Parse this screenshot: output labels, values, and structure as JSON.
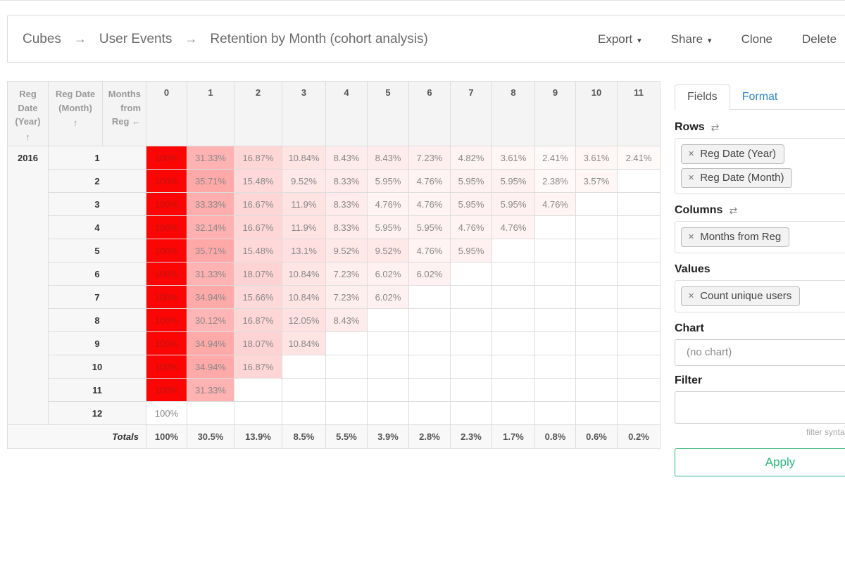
{
  "breadcrumb": {
    "separator": "→",
    "items": [
      {
        "label": "Cubes",
        "link": true
      },
      {
        "label": "User Events",
        "link": true
      },
      {
        "label": "Retention by Month (cohort analysis)",
        "link": false
      }
    ]
  },
  "actions": [
    {
      "label": "Export",
      "caret": true
    },
    {
      "label": "Share",
      "caret": true
    },
    {
      "label": "Clone",
      "caret": false
    },
    {
      "label": "Delete",
      "caret": false
    }
  ],
  "pivot": {
    "row_headers": [
      {
        "label": "Reg Date (Year)",
        "sort": "↑"
      },
      {
        "label": "Reg Date (Month)",
        "sort": "↑"
      },
      {
        "label": "Months from Reg",
        "sort": "←"
      }
    ],
    "col_headers": [
      "0",
      "1",
      "2",
      "3",
      "4",
      "5",
      "6",
      "7",
      "8",
      "9",
      "10",
      "11"
    ],
    "year": "2016",
    "rows": [
      {
        "month": "1",
        "cells": [
          "100%",
          "31.33%",
          "16.87%",
          "10.84%",
          "8.43%",
          "8.43%",
          "7.23%",
          "4.82%",
          "3.61%",
          "2.41%",
          "3.61%",
          "2.41%"
        ]
      },
      {
        "month": "2",
        "cells": [
          "100%",
          "35.71%",
          "15.48%",
          "9.52%",
          "8.33%",
          "5.95%",
          "4.76%",
          "5.95%",
          "5.95%",
          "2.38%",
          "3.57%",
          ""
        ]
      },
      {
        "month": "3",
        "cells": [
          "100%",
          "33.33%",
          "16.67%",
          "11.9%",
          "8.33%",
          "4.76%",
          "4.76%",
          "5.95%",
          "5.95%",
          "4.76%",
          "",
          ""
        ]
      },
      {
        "month": "4",
        "cells": [
          "100%",
          "32.14%",
          "16.67%",
          "11.9%",
          "8.33%",
          "5.95%",
          "5.95%",
          "4.76%",
          "4.76%",
          "",
          "",
          ""
        ]
      },
      {
        "month": "5",
        "cells": [
          "100%",
          "35.71%",
          "15.48%",
          "13.1%",
          "9.52%",
          "9.52%",
          "4.76%",
          "5.95%",
          "",
          "",
          "",
          ""
        ]
      },
      {
        "month": "6",
        "cells": [
          "100%",
          "31.33%",
          "18.07%",
          "10.84%",
          "7.23%",
          "6.02%",
          "6.02%",
          "",
          "",
          "",
          "",
          ""
        ]
      },
      {
        "month": "7",
        "cells": [
          "100%",
          "34.94%",
          "15.66%",
          "10.84%",
          "7.23%",
          "6.02%",
          "",
          "",
          "",
          "",
          "",
          ""
        ]
      },
      {
        "month": "8",
        "cells": [
          "100%",
          "30.12%",
          "16.87%",
          "12.05%",
          "8.43%",
          "",
          "",
          "",
          "",
          "",
          "",
          ""
        ]
      },
      {
        "month": "9",
        "cells": [
          "100%",
          "34.94%",
          "18.07%",
          "10.84%",
          "",
          "",
          "",
          "",
          "",
          "",
          "",
          ""
        ]
      },
      {
        "month": "10",
        "cells": [
          "100%",
          "34.94%",
          "16.87%",
          "",
          "",
          "",
          "",
          "",
          "",
          "",
          "",
          ""
        ]
      },
      {
        "month": "11",
        "cells": [
          "100%",
          "31.33%",
          "",
          "",
          "",
          "",
          "",
          "",
          "",
          "",
          "",
          ""
        ]
      },
      {
        "month": "12",
        "cells": [
          "100%",
          "",
          "",
          "",
          "",
          "",
          "",
          "",
          "",
          "",
          "",
          ""
        ]
      }
    ],
    "no_heat_cells": [
      [
        11,
        0
      ]
    ],
    "totals_label": "Totals",
    "totals": [
      "100%",
      "30.5%",
      "13.9%",
      "8.5%",
      "5.5%",
      "3.9%",
      "2.8%",
      "2.3%",
      "1.7%",
      "0.8%",
      "0.6%",
      "0.2%"
    ]
  },
  "panel": {
    "tabs": [
      {
        "label": "Fields",
        "active": true
      },
      {
        "label": "Format",
        "active": false
      }
    ],
    "sections": [
      {
        "title": "Rows",
        "swap_icon": true,
        "tags": [
          "Reg Date (Year)",
          "Reg Date (Month)"
        ]
      },
      {
        "title": "Columns",
        "swap_icon": true,
        "tags": [
          "Months from Reg"
        ]
      },
      {
        "title": "Values",
        "swap_icon": false,
        "tags": [
          "Count unique users"
        ]
      }
    ],
    "chart": {
      "title": "Chart",
      "value": "(no chart)"
    },
    "filter": {
      "title": "Filter",
      "value": "",
      "help": "filter syntax help"
    },
    "apply_label": "Apply"
  },
  "colors": {
    "heat_red": "#fb0604",
    "heat_text_red": "#bf1311",
    "accent_green": "#2fb57c",
    "link_blue": "#2d87c3",
    "border_gray": "#dddddd"
  }
}
